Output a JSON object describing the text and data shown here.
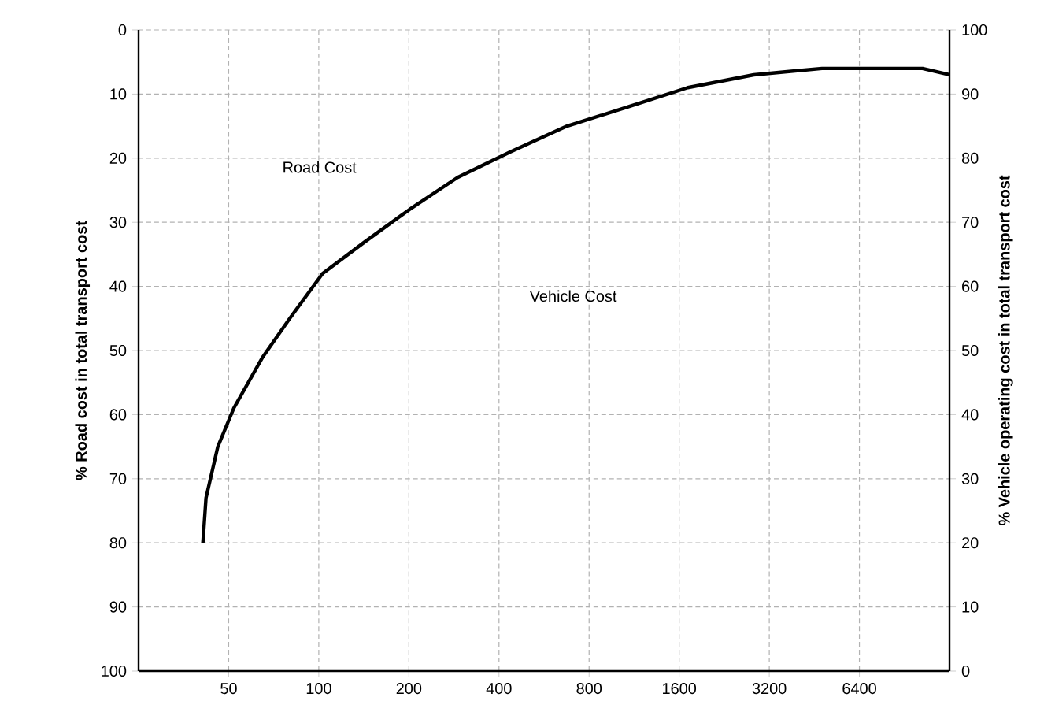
{
  "chart_data": {
    "type": "line",
    "ylabel": "% Road cost in total transport cost",
    "y2label": "% Vehicle operating cost in total transport cost",
    "annotations": [
      "Road Cost",
      "Vehicle Cost"
    ],
    "log": "x",
    "xlim": [
      25,
      12800
    ],
    "xticks": [
      50,
      100,
      200,
      400,
      800,
      1600,
      3200,
      6400
    ],
    "ylim": [
      100,
      0
    ],
    "yticks": [
      0,
      10,
      20,
      30,
      40,
      50,
      60,
      70,
      80,
      90,
      100
    ],
    "y2lim": [
      0,
      100
    ],
    "y2ticks": [
      0,
      10,
      20,
      30,
      40,
      50,
      60,
      70,
      80,
      90,
      100
    ],
    "grid": true,
    "series": [
      {
        "color": "#000000",
        "x": [
          41,
          42,
          46,
          52,
          65,
          80,
          103,
          143,
          201,
          291,
          437,
          675,
          1080,
          1710,
          2840,
          4800,
          8300,
          10400,
          12800
        ],
        "values": [
          80,
          73,
          65,
          59,
          51,
          45,
          38,
          33,
          28,
          23,
          19,
          15,
          12,
          9,
          7,
          6,
          6,
          6,
          7
        ]
      }
    ]
  }
}
